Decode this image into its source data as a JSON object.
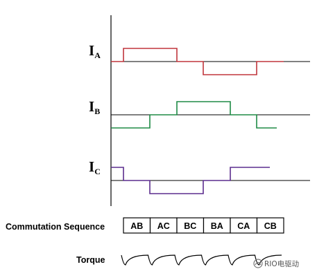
{
  "signals": [
    {
      "name": "I",
      "sub": "A",
      "color": "#c0353c",
      "levels": [
        1,
        1,
        0,
        -1,
        -1,
        0
      ]
    },
    {
      "name": "I",
      "sub": "B",
      "color": "#1e8a45",
      "levels": [
        -1,
        0,
        1,
        1,
        0,
        -1
      ]
    },
    {
      "name": "I",
      "sub": "C",
      "color": "#5b2d8e",
      "levels": [
        0,
        -1,
        -1,
        0,
        1,
        1
      ]
    }
  ],
  "commutation": {
    "label": "Commutation Sequence",
    "steps": [
      "AB",
      "AC",
      "BC",
      "BA",
      "CA",
      "CB"
    ]
  },
  "torque": {
    "label": "Torque"
  },
  "watermark": {
    "text": "RIO电驱动"
  }
}
